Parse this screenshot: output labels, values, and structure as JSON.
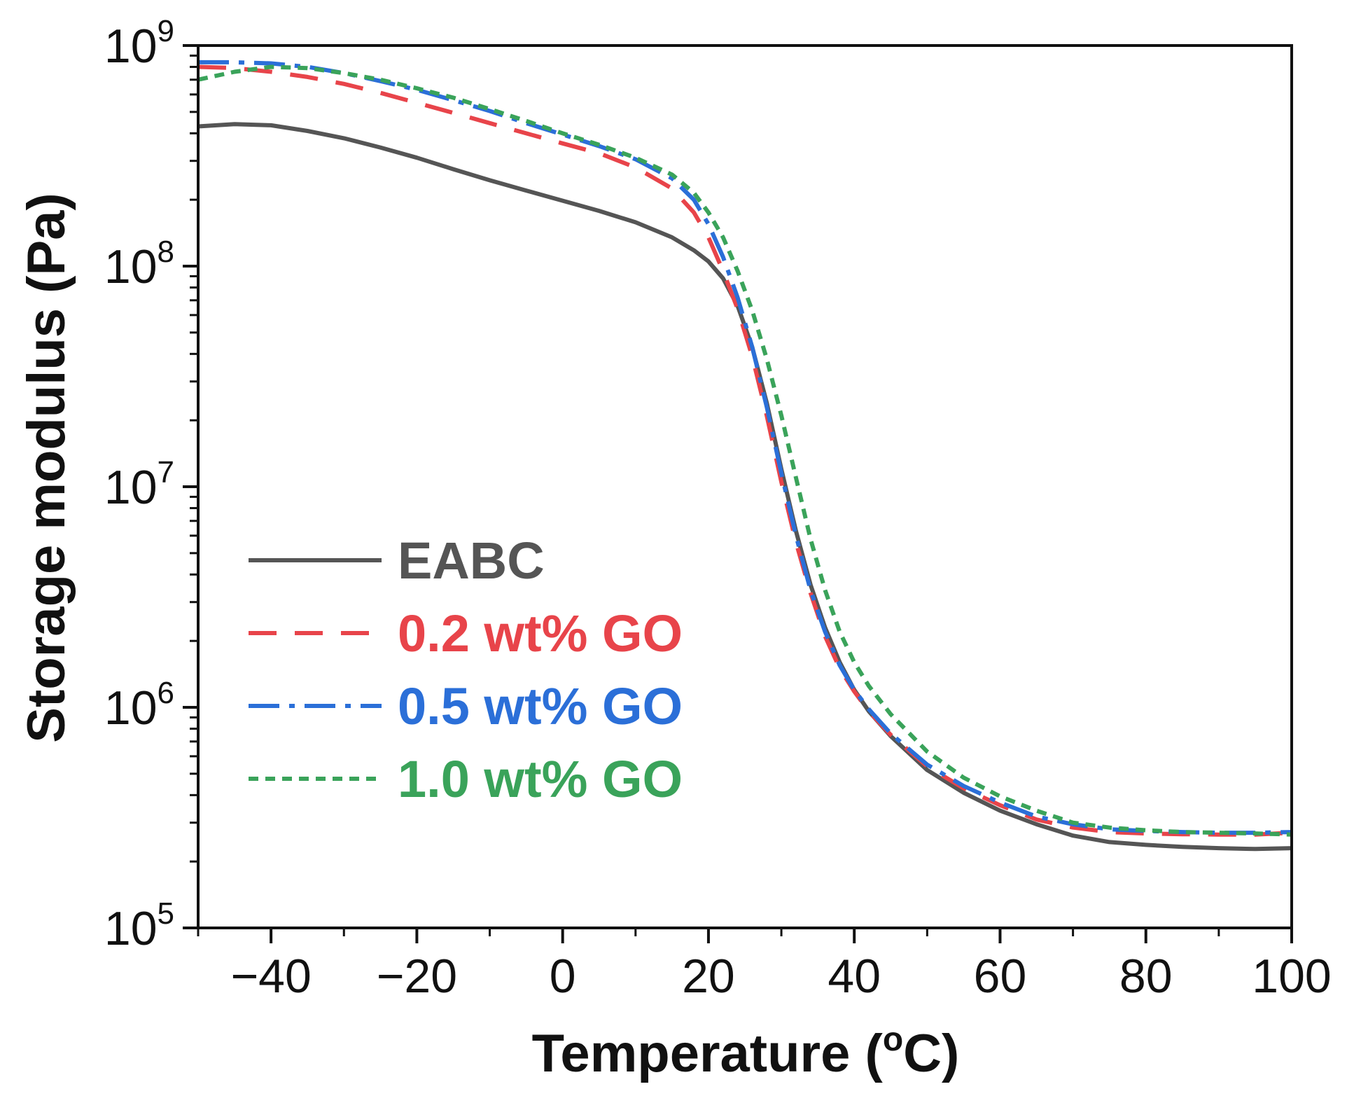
{
  "chart_data": {
    "type": "line",
    "title": "",
    "xlabel": "Temperature (oC)",
    "xlabel_parts": {
      "prefix": "Temperature (",
      "superscript": "o",
      "suffix": "C)"
    },
    "ylabel": "Storage modulus (Pa)",
    "xlim": [
      -50,
      100
    ],
    "ylim": [
      100000,
      1000000000
    ],
    "yscale": "log",
    "x_ticks": [
      -40,
      -20,
      0,
      20,
      40,
      60,
      80,
      100
    ],
    "x_tick_labels": [
      "−40",
      "−20",
      "0",
      "20",
      "40",
      "60",
      "80",
      "100"
    ],
    "y_ticks": [
      {
        "value": 1000000000,
        "base": "10",
        "exp": "9"
      },
      {
        "value": 100000000,
        "base": "10",
        "exp": "8"
      },
      {
        "value": 10000000,
        "base": "10",
        "exp": "7"
      },
      {
        "value": 1000000,
        "base": "10",
        "exp": "6"
      },
      {
        "value": 100000,
        "base": "10",
        "exp": "5"
      }
    ],
    "grid": false,
    "legend_position": "left-center",
    "series": [
      {
        "name": "EABC",
        "color": "#555555",
        "dash": "solid",
        "points": [
          [
            -50,
            430000000.0
          ],
          [
            -45,
            440000000.0
          ],
          [
            -40,
            435000000.0
          ],
          [
            -35,
            410000000.0
          ],
          [
            -30,
            380000000.0
          ],
          [
            -25,
            345000000.0
          ],
          [
            -20,
            310000000.0
          ],
          [
            -15,
            275000000.0
          ],
          [
            -10,
            245000000.0
          ],
          [
            -5,
            220000000.0
          ],
          [
            0,
            198000000.0
          ],
          [
            5,
            178000000.0
          ],
          [
            10,
            158000000.0
          ],
          [
            15,
            135000000.0
          ],
          [
            18,
            118000000.0
          ],
          [
            20,
            105000000.0
          ],
          [
            22,
            88000000.0
          ],
          [
            24,
            66000000.0
          ],
          [
            26,
            43000000.0
          ],
          [
            28,
            24000000.0
          ],
          [
            30,
            12000000.0
          ],
          [
            32,
            6300000.0
          ],
          [
            34,
            3600000.0
          ],
          [
            36,
            2300000.0
          ],
          [
            38,
            1600000.0
          ],
          [
            40,
            1200000.0
          ],
          [
            42,
            960000.0
          ],
          [
            45,
            740000.0
          ],
          [
            50,
            520000.0
          ],
          [
            55,
            410000.0
          ],
          [
            60,
            340000.0
          ],
          [
            65,
            295000.0
          ],
          [
            70,
            262000.0
          ],
          [
            75,
            245000.0
          ],
          [
            80,
            238000.0
          ],
          [
            85,
            233000.0
          ],
          [
            90,
            230000.0
          ],
          [
            95,
            228000.0
          ],
          [
            100,
            230000.0
          ]
        ]
      },
      {
        "name": "0.2 wt% GO",
        "color": "#e8444a",
        "dash": "dashed",
        "points": [
          [
            -50,
            800000000.0
          ],
          [
            -45,
            790000000.0
          ],
          [
            -40,
            760000000.0
          ],
          [
            -35,
            720000000.0
          ],
          [
            -30,
            670000000.0
          ],
          [
            -25,
            610000000.0
          ],
          [
            -20,
            550000000.0
          ],
          [
            -15,
            495000000.0
          ],
          [
            -10,
            445000000.0
          ],
          [
            -5,
            400000000.0
          ],
          [
            0,
            360000000.0
          ],
          [
            5,
            325000000.0
          ],
          [
            10,
            280000000.0
          ],
          [
            15,
            225000000.0
          ],
          [
            18,
            175000000.0
          ],
          [
            20,
            135000000.0
          ],
          [
            22,
            95000000.0
          ],
          [
            24,
            64000000.0
          ],
          [
            26,
            39000000.0
          ],
          [
            28,
            21000000.0
          ],
          [
            30,
            10500000.0
          ],
          [
            32,
            5600000.0
          ],
          [
            34,
            3300000.0
          ],
          [
            36,
            2100000.0
          ],
          [
            38,
            1500000.0
          ],
          [
            40,
            1180000.0
          ],
          [
            42,
            960000.0
          ],
          [
            45,
            750000.0
          ],
          [
            50,
            540000.0
          ],
          [
            55,
            430000.0
          ],
          [
            60,
            360000.0
          ],
          [
            65,
            310000.0
          ],
          [
            70,
            285000.0
          ],
          [
            75,
            272000.0
          ],
          [
            80,
            268000.0
          ],
          [
            85,
            266000.0
          ],
          [
            90,
            265000.0
          ],
          [
            95,
            265000.0
          ],
          [
            100,
            270000.0
          ]
        ]
      },
      {
        "name": "0.5 wt% GO",
        "color": "#2b6fd8",
        "dash": "dashdot",
        "points": [
          [
            -50,
            840000000.0
          ],
          [
            -45,
            840000000.0
          ],
          [
            -40,
            830000000.0
          ],
          [
            -35,
            800000000.0
          ],
          [
            -30,
            750000000.0
          ],
          [
            -25,
            690000000.0
          ],
          [
            -20,
            630000000.0
          ],
          [
            -15,
            565000000.0
          ],
          [
            -10,
            505000000.0
          ],
          [
            -5,
            445000000.0
          ],
          [
            0,
            395000000.0
          ],
          [
            5,
            350000000.0
          ],
          [
            10,
            305000000.0
          ],
          [
            15,
            250000000.0
          ],
          [
            18,
            200000000.0
          ],
          [
            20,
            155000000.0
          ],
          [
            22,
            110000000.0
          ],
          [
            24,
            72000000.0
          ],
          [
            26,
            43000000.0
          ],
          [
            28,
            23000000.0
          ],
          [
            30,
            11500000.0
          ],
          [
            32,
            6000000.0
          ],
          [
            34,
            3400000.0
          ],
          [
            36,
            2200000.0
          ],
          [
            38,
            1550000.0
          ],
          [
            40,
            1200000.0
          ],
          [
            42,
            980000.0
          ],
          [
            45,
            760000.0
          ],
          [
            50,
            550000.0
          ],
          [
            55,
            440000.0
          ],
          [
            60,
            370000.0
          ],
          [
            65,
            320000.0
          ],
          [
            70,
            295000.0
          ],
          [
            75,
            280000.0
          ],
          [
            80,
            275000.0
          ],
          [
            85,
            272000.0
          ],
          [
            90,
            270000.0
          ],
          [
            95,
            270000.0
          ],
          [
            100,
            272000.0
          ]
        ]
      },
      {
        "name": "1.0 wt% GO",
        "color": "#3aa35a",
        "dash": "dotted",
        "points": [
          [
            -50,
            700000000.0
          ],
          [
            -45,
            760000000.0
          ],
          [
            -40,
            800000000.0
          ],
          [
            -35,
            790000000.0
          ],
          [
            -30,
            750000000.0
          ],
          [
            -25,
            700000000.0
          ],
          [
            -20,
            640000000.0
          ],
          [
            -15,
            580000000.0
          ],
          [
            -10,
            515000000.0
          ],
          [
            -5,
            455000000.0
          ],
          [
            0,
            400000000.0
          ],
          [
            5,
            355000000.0
          ],
          [
            10,
            310000000.0
          ],
          [
            15,
            260000000.0
          ],
          [
            18,
            215000000.0
          ],
          [
            20,
            175000000.0
          ],
          [
            22,
            135000000.0
          ],
          [
            24,
            95000000.0
          ],
          [
            26,
            63000000.0
          ],
          [
            28,
            38000000.0
          ],
          [
            30,
            21000000.0
          ],
          [
            32,
            11000000.0
          ],
          [
            34,
            5800000.0
          ],
          [
            36,
            3400000.0
          ],
          [
            38,
            2200000.0
          ],
          [
            40,
            1600000.0
          ],
          [
            42,
            1250000.0
          ],
          [
            45,
            930000.0
          ],
          [
            50,
            630000.0
          ],
          [
            55,
            480000.0
          ],
          [
            60,
            395000.0
          ],
          [
            65,
            340000.0
          ],
          [
            70,
            300000.0
          ],
          [
            75,
            285000.0
          ],
          [
            80,
            277000.0
          ],
          [
            85,
            272000.0
          ],
          [
            90,
            270000.0
          ],
          [
            95,
            268000.0
          ],
          [
            100,
            265000.0
          ]
        ]
      }
    ]
  }
}
